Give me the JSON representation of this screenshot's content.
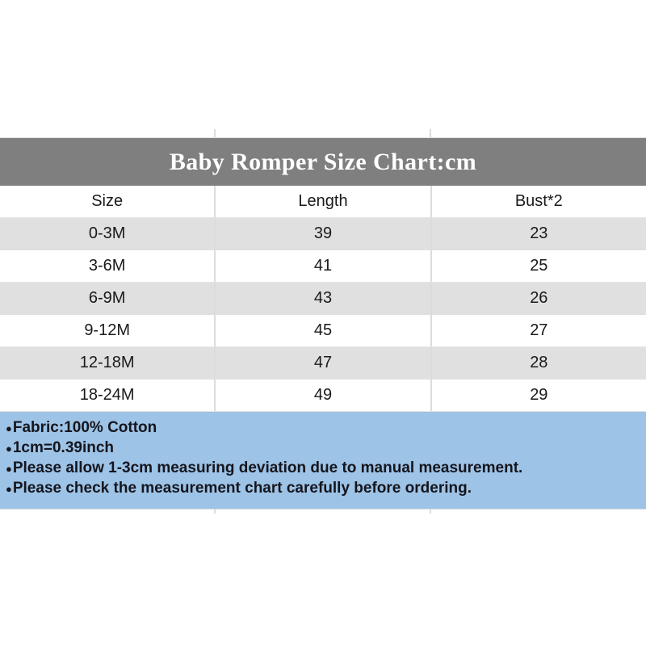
{
  "chart_data": {
    "type": "table",
    "title": "Baby Romper Size Chart:cm",
    "columns": [
      "Size",
      "Length",
      "Bust*2"
    ],
    "rows": [
      [
        "0-3M",
        "39",
        "23"
      ],
      [
        "3-6M",
        "41",
        "25"
      ],
      [
        "6-9M",
        "43",
        "26"
      ],
      [
        "9-12M",
        "45",
        "27"
      ],
      [
        "12-18M",
        "47",
        "28"
      ],
      [
        "18-24M",
        "49",
        "29"
      ]
    ]
  },
  "notes": {
    "bullet": "●",
    "items": [
      "Fabric:100% Cotton",
      "1cm=0.39inch",
      "Please allow 1-3cm measuring deviation due to manual measurement.",
      "Please check the measurement chart carefully before ordering."
    ]
  },
  "colors": {
    "title_bar_bg": "#7f7f7f",
    "title_text": "#ffffff",
    "row_alt_bg": "#e0e0e0",
    "row_bg": "#ffffff",
    "table_text": "#1a1a1a",
    "separator": "#dcdcdc",
    "notes_bg": "#9dc3e6",
    "notes_text": "#15151d"
  }
}
